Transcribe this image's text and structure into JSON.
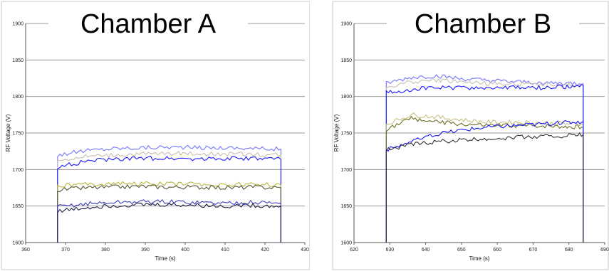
{
  "chart_data": [
    {
      "type": "line",
      "title": "Chamber A",
      "xlabel": "Time (s)",
      "ylabel": "RF Voltage (V)",
      "xlim": [
        360,
        430
      ],
      "ylim": [
        1600,
        1900
      ],
      "xticks": [
        360,
        370,
        380,
        390,
        400,
        410,
        420,
        430
      ],
      "yticks": [
        1600,
        1650,
        1700,
        1750,
        1800,
        1850,
        1900
      ],
      "grid": "horizontal",
      "series": [
        {
          "color": "#7777ff",
          "x": [
            368,
            375,
            382,
            389,
            396,
            403,
            410,
            417,
            424
          ],
          "y": [
            1720,
            1726,
            1729,
            1730,
            1731,
            1730,
            1730,
            1729,
            1728
          ]
        },
        {
          "color": "#c8c0b0",
          "x": [
            368,
            375,
            382,
            389,
            396,
            403,
            410,
            417,
            424
          ],
          "y": [
            1712,
            1718,
            1720,
            1721,
            1722,
            1722,
            1721,
            1721,
            1720
          ]
        },
        {
          "color": "#1a1aff",
          "x": [
            368,
            375,
            382,
            389,
            396,
            403,
            410,
            417,
            424
          ],
          "y": [
            1703,
            1711,
            1714,
            1715,
            1716,
            1715,
            1715,
            1715,
            1714
          ]
        },
        {
          "color": "#b8b840",
          "x": [
            368,
            375,
            382,
            389,
            396,
            403,
            410,
            417,
            424
          ],
          "y": [
            1678,
            1680,
            1681,
            1681,
            1680,
            1680,
            1679,
            1680,
            1679
          ]
        },
        {
          "color": "#555533",
          "x": [
            368,
            375,
            382,
            389,
            396,
            403,
            410,
            417,
            424
          ],
          "y": [
            1672,
            1675,
            1676,
            1677,
            1676,
            1676,
            1675,
            1676,
            1675
          ]
        },
        {
          "color": "#4040c0",
          "x": [
            368,
            375,
            382,
            389,
            396,
            403,
            410,
            417,
            424
          ],
          "y": [
            1649,
            1653,
            1655,
            1656,
            1656,
            1655,
            1654,
            1655,
            1654
          ]
        },
        {
          "color": "#222244",
          "x": [
            368,
            375,
            382,
            389,
            396,
            403,
            410,
            417,
            424
          ],
          "y": [
            1643,
            1648,
            1651,
            1652,
            1652,
            1651,
            1650,
            1651,
            1650
          ]
        }
      ]
    },
    {
      "type": "line",
      "title": "Chamber B",
      "xlabel": "Time (s)",
      "ylabel": "RF Voltage (V)",
      "xlim": [
        620,
        690
      ],
      "ylim": [
        1600,
        1900
      ],
      "xticks": [
        620,
        630,
        640,
        650,
        660,
        670,
        680,
        690
      ],
      "yticks": [
        1600,
        1650,
        1700,
        1750,
        1800,
        1850,
        1900
      ],
      "grid": "horizontal",
      "series": [
        {
          "color": "#7777ff",
          "x": [
            629,
            636,
            643,
            650,
            657,
            664,
            671,
            678,
            684
          ],
          "y": [
            1818,
            1826,
            1828,
            1824,
            1822,
            1820,
            1819,
            1818,
            1818
          ]
        },
        {
          "color": "#c8c0b0",
          "x": [
            629,
            636,
            643,
            650,
            657,
            664,
            671,
            678,
            684
          ],
          "y": [
            1812,
            1820,
            1822,
            1820,
            1818,
            1817,
            1816,
            1815,
            1815
          ]
        },
        {
          "color": "#1a1aff",
          "x": [
            629,
            636,
            643,
            650,
            657,
            664,
            671,
            678,
            684
          ],
          "y": [
            1805,
            1810,
            1812,
            1812,
            1812,
            1812,
            1812,
            1813,
            1815
          ]
        },
        {
          "color": "#c8c080",
          "x": [
            629,
            636,
            643,
            650,
            657,
            664,
            671,
            678,
            684
          ],
          "y": [
            1762,
            1775,
            1772,
            1768,
            1765,
            1765,
            1764,
            1763,
            1762
          ]
        },
        {
          "color": "#6e6e22",
          "x": [
            629,
            636,
            643,
            650,
            657,
            664,
            671,
            678,
            684
          ],
          "y": [
            1755,
            1770,
            1765,
            1762,
            1760,
            1760,
            1760,
            1759,
            1758
          ]
        },
        {
          "color": "#1a1aff",
          "x": [
            629,
            636,
            643,
            650,
            657,
            664,
            671,
            678,
            684
          ],
          "y": [
            1727,
            1738,
            1748,
            1754,
            1758,
            1760,
            1762,
            1764,
            1766
          ]
        },
        {
          "color": "#333333",
          "x": [
            629,
            636,
            643,
            650,
            657,
            664,
            671,
            678,
            684
          ],
          "y": [
            1727,
            1734,
            1738,
            1740,
            1742,
            1744,
            1745,
            1746,
            1748
          ]
        }
      ]
    }
  ]
}
